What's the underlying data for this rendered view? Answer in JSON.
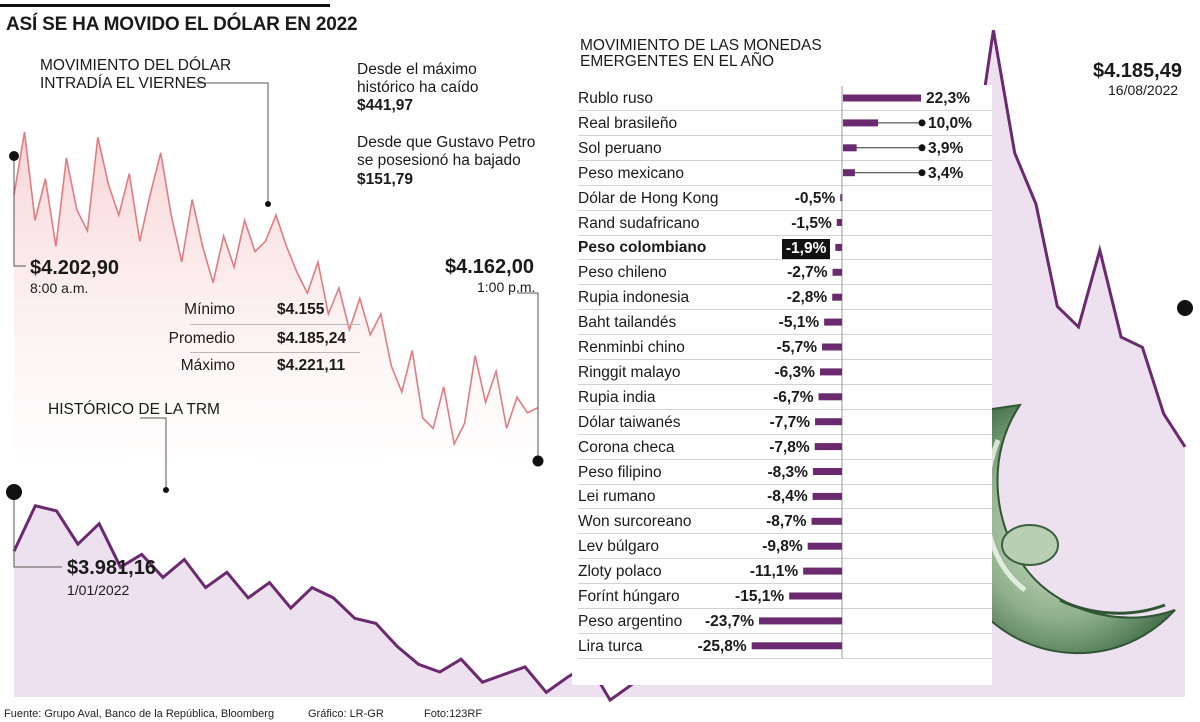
{
  "headline": "ASÍ SE HA MOVIDO EL DÓLAR EN 2022",
  "intraday": {
    "label_line1": "MOVIMIENTO DEL DÓLAR",
    "label_line2": "INTRADÍA EL VIERNES",
    "open_value": "$4.202,90",
    "open_time": "8:00 a.m.",
    "close_value": "$4.162,00",
    "close_time": "1:00 p.m.",
    "series_color": "#e47b80",
    "fill_color": "#fbe4e4",
    "approx_values": [
      4202.9,
      4215,
      4198,
      4206,
      4193,
      4210,
      4200,
      4196,
      4214,
      4205,
      4199,
      4207,
      4194,
      4203,
      4211,
      4199,
      4190,
      4202,
      4193,
      4186,
      4195,
      4189,
      4198,
      4192,
      4194,
      4199,
      4193,
      4188,
      4184,
      4190,
      4180,
      4185,
      4177,
      4183,
      4176,
      4180,
      4170,
      4165,
      4173,
      4160,
      4158,
      4166,
      4155,
      4159,
      4172,
      4163,
      4169,
      4158,
      4164,
      4161,
      4162
    ]
  },
  "stats": {
    "min_label": "Mínimo",
    "min_value": "$4.155",
    "avg_label": "Promedio",
    "avg_value": "$4.185,24",
    "max_label": "Máximo",
    "max_value": "$4.221,11"
  },
  "notes": {
    "note1_line1": "Desde el máximo",
    "note1_line2": "histórico ha caído",
    "note1_value": "$441,97",
    "note2_line1": "Desde que Gustavo Petro",
    "note2_line2": "se posesionó ha bajado",
    "note2_value": "$151,79"
  },
  "trm": {
    "label": "HISTÓRICO DE LA TRM",
    "start_value": "$3.981,16",
    "start_date": "1/01/2022",
    "end_value": "$4.185,49",
    "end_date": "16/08/2022",
    "series_color": "#6b2a6f",
    "fill_color": "#eee1ef",
    "approx_values": [
      3981,
      4070,
      4060,
      3995,
      4035,
      3950,
      3975,
      3930,
      3965,
      3910,
      3940,
      3890,
      3920,
      3870,
      3910,
      3890,
      3850,
      3840,
      3795,
      3760,
      3745,
      3770,
      3725,
      3740,
      3755,
      3705,
      3735,
      3760,
      3690,
      3720,
      3850,
      3900,
      3960,
      3980,
      3945,
      4020,
      4120,
      4300,
      4470,
      4480,
      4560,
      4620,
      4510,
      4420,
      4520,
      4720,
      5000,
      4760,
      4660,
      4460,
      4420,
      4570,
      4400,
      4380,
      4250,
      4185.49
    ]
  },
  "currencies": {
    "title_line1": "MOVIMIENTO DE LAS MONEDAS",
    "title_line2": "EMERGENTES EN EL AÑO",
    "bar_color": "#6b2a6f",
    "items": [
      {
        "name": "Rublo ruso",
        "label": "22,3%",
        "value": 22.3
      },
      {
        "name": "Real brasileño",
        "label": "10,0%",
        "value": 10.0
      },
      {
        "name": "Sol peruano",
        "label": "3,9%",
        "value": 3.9
      },
      {
        "name": "Peso mexicano",
        "label": "3,4%",
        "value": 3.4
      },
      {
        "name": "Dólar de Hong Kong",
        "label": "-0,5%",
        "value": -0.5
      },
      {
        "name": "Rand sudafricano",
        "label": "-1,5%",
        "value": -1.5
      },
      {
        "name": "Peso colombiano",
        "label": "-1,9%",
        "value": -1.9,
        "highlight": true
      },
      {
        "name": "Peso chileno",
        "label": "-2,7%",
        "value": -2.7
      },
      {
        "name": "Rupia indonesia",
        "label": "-2,8%",
        "value": -2.8
      },
      {
        "name": "Baht tailandés",
        "label": "-5,1%",
        "value": -5.1
      },
      {
        "name": "Renminbi chino",
        "label": "-5,7%",
        "value": -5.7
      },
      {
        "name": "Ringgit malayo",
        "label": "-6,3%",
        "value": -6.3
      },
      {
        "name": "Rupia india",
        "label": "-6,7%",
        "value": -6.7
      },
      {
        "name": "Dólar taiwanés",
        "label": "-7,7%",
        "value": -7.7
      },
      {
        "name": "Corona checa",
        "label": "-7,8%",
        "value": -7.8
      },
      {
        "name": "Peso filipino",
        "label": "-8,3%",
        "value": -8.3
      },
      {
        "name": "Lei rumano",
        "label": "-8,4%",
        "value": -8.4
      },
      {
        "name": "Won surcoreano",
        "label": "-8,7%",
        "value": -8.7
      },
      {
        "name": "Lev búlgaro",
        "label": "-9,8%",
        "value": -9.8
      },
      {
        "name": "Zloty polaco",
        "label": "-11,1%",
        "value": -11.1
      },
      {
        "name": "Forínt húngaro",
        "label": "-15,1%",
        "value": -15.1
      },
      {
        "name": "Peso argentino",
        "label": "-23,7%",
        "value": -23.7
      },
      {
        "name": "Lira turca",
        "label": "-25,8%",
        "value": -25.8
      }
    ]
  },
  "footer": {
    "source": "Fuente: Grupo Aval, Banco de la República, Bloomberg",
    "graphic": "Gráfico: LR-GR",
    "photo": "Foto:123RF"
  },
  "chart_data": [
    {
      "type": "line",
      "title": "Movimiento del dólar intradía el viernes",
      "x": [
        "8:00 a.m.",
        "1:00 p.m."
      ],
      "values_start_end": [
        4202.9,
        4162.0
      ],
      "min": 4155,
      "mean": 4185.24,
      "max": 4221.11
    },
    {
      "type": "line",
      "title": "Histórico de la TRM",
      "x": [
        "1/01/2022",
        "16/08/2022"
      ],
      "values_start_end": [
        3981.16,
        4185.49
      ]
    },
    {
      "type": "bar",
      "title": "Movimiento de las monedas emergentes en el año",
      "categories": [
        "Rublo ruso",
        "Real brasileño",
        "Sol peruano",
        "Peso mexicano",
        "Dólar de Hong Kong",
        "Rand sudafricano",
        "Peso colombiano",
        "Peso chileno",
        "Rupia indonesia",
        "Baht tailandés",
        "Renminbi chino",
        "Ringgit malayo",
        "Rupia india",
        "Dólar taiwanés",
        "Corona checa",
        "Peso filipino",
        "Lei rumano",
        "Won surcoreano",
        "Lev búlgaro",
        "Zloty polaco",
        "Forínt húngaro",
        "Peso argentino",
        "Lira turca"
      ],
      "values": [
        22.3,
        10.0,
        3.9,
        3.4,
        -0.5,
        -1.5,
        -1.9,
        -2.7,
        -2.8,
        -5.1,
        -5.7,
        -6.3,
        -6.7,
        -7.7,
        -7.8,
        -8.3,
        -8.4,
        -8.7,
        -9.8,
        -11.1,
        -15.1,
        -23.7,
        -25.8
      ],
      "unit": "%"
    }
  ]
}
